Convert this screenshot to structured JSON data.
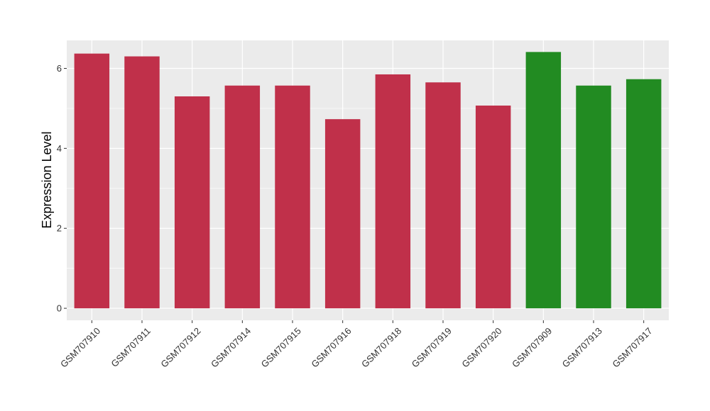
{
  "chart_data": {
    "type": "bar",
    "title": "",
    "xlabel": "",
    "ylabel": "Expression Level",
    "ylim": [
      -0.3,
      6.7
    ],
    "yticks": [
      0,
      2,
      4,
      6
    ],
    "grid": true,
    "legend": "none",
    "categories": [
      "GSM707910",
      "GSM707911",
      "GSM707912",
      "GSM707914",
      "GSM707915",
      "GSM707916",
      "GSM707918",
      "GSM707919",
      "GSM707920",
      "GSM707909",
      "GSM707913",
      "GSM707917"
    ],
    "values": [
      6.37,
      6.3,
      5.3,
      5.57,
      5.57,
      4.73,
      5.85,
      5.65,
      5.07,
      6.41,
      5.57,
      5.73
    ],
    "colors": [
      "#c0304a",
      "#c0304a",
      "#c0304a",
      "#c0304a",
      "#c0304a",
      "#c0304a",
      "#c0304a",
      "#c0304a",
      "#c0304a",
      "#228b22",
      "#228b22",
      "#228b22"
    ],
    "panel_color": "#ebebeb",
    "grid_color": "#ffffff"
  }
}
